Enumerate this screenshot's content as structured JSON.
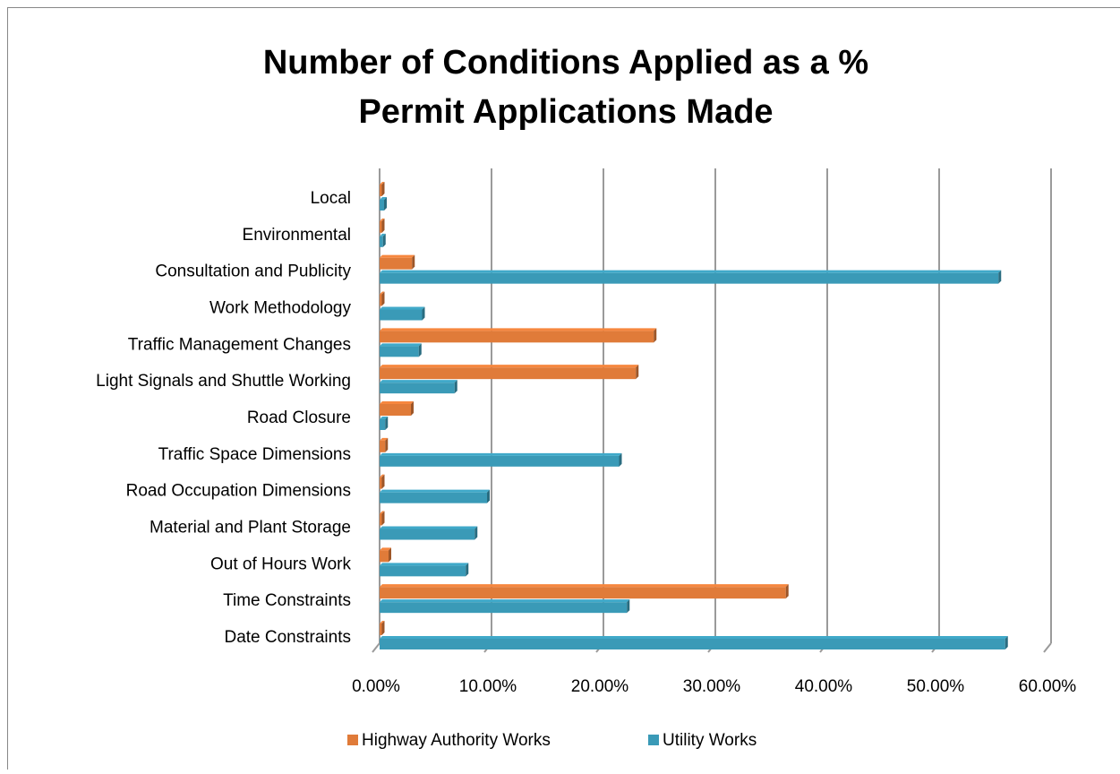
{
  "chart_data": {
    "type": "bar",
    "orientation": "horizontal",
    "title": "Number of Conditions Applied as a % Permit Applications Made",
    "categories": [
      "Local",
      "Environmental",
      "Consultation and Publicity",
      "Work Methodology",
      "Traffic Management Changes",
      "Light Signals and Shuttle Working",
      "Road Closure",
      "Traffic Space Dimensions",
      "Road Occupation Dimensions",
      "Material and Plant Storage",
      "Out of Hours Work",
      "Time Constraints",
      "Date Constraints"
    ],
    "series": [
      {
        "name": "Highway Authority Works",
        "color": "#e07b39",
        "values": [
          0.2,
          0.2,
          2.9,
          0.2,
          24.5,
          22.9,
          2.8,
          0.5,
          0.2,
          0.2,
          0.8,
          36.3,
          0.2
        ]
      },
      {
        "name": "Utility Works",
        "color": "#3a9ab7",
        "values": [
          0.4,
          0.3,
          55.3,
          3.8,
          3.5,
          6.7,
          0.5,
          21.4,
          9.6,
          8.5,
          7.7,
          22.1,
          55.9
        ]
      }
    ],
    "xlim": [
      0,
      60
    ],
    "xticks": [
      {
        "value": 0,
        "label": "0.00%"
      },
      {
        "value": 10,
        "label": "10.00%"
      },
      {
        "value": 20,
        "label": "20.00%"
      },
      {
        "value": 30,
        "label": "30.00%"
      },
      {
        "value": 40,
        "label": "40.00%"
      },
      {
        "value": 50,
        "label": "50.00%"
      },
      {
        "value": 60,
        "label": "60.00%"
      }
    ],
    "grid": true,
    "legend": "bottom"
  }
}
